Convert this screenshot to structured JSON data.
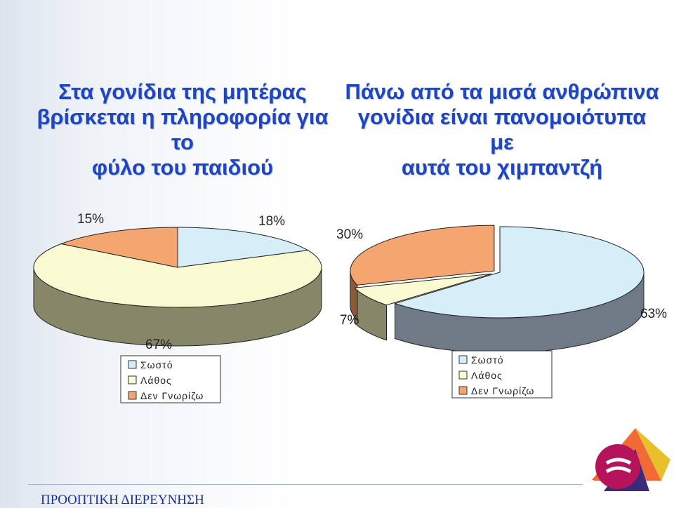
{
  "slide": {
    "title_left": [
      "Στα γονίδια της μητέρας",
      "βρίσκεται η πληροφορία για το",
      "φύλο του παιδιού"
    ],
    "title_right": [
      "Πάνω από τα μισά ανθρώπινα",
      "γονίδια είναι πανομοιότυπα με",
      "αυτά του χιμπαντζή"
    ],
    "footer": "ΠΡΟΟΠΤΙΚΗ ΔΙΕΡΕΥΝΗΣΗ",
    "logo_text": "ΠΡΟΟΠΤΙΚΗ ΔΙΕΡΕΥΝΗΣΗ"
  },
  "colors": {
    "correct": "#d6eef8",
    "wrong": "#fafad2",
    "dont_know": "#f5a56f",
    "title": "#1e45c2",
    "side_correct": "#6f7a86",
    "side_wrong": "#868668",
    "side_dont_know": "#8a5a3a"
  },
  "chart_data": [
    {
      "type": "pie",
      "categories": [
        "Σωστό",
        "Λάθος",
        "Δεν Γνωρίζω"
      ],
      "values": [
        18,
        67,
        15
      ],
      "labels": [
        "18%",
        "67%",
        "15%"
      ],
      "legend": [
        "Σωστό",
        "Λάθος",
        "Δεν Γνωρίζω"
      ],
      "legend_position": "bottom"
    },
    {
      "type": "pie",
      "categories": [
        "Σωστό",
        "Λάθος",
        "Δεν Γνωρίζω"
      ],
      "values": [
        63,
        7,
        30
      ],
      "labels": [
        "63%",
        "7%",
        "30%"
      ],
      "legend": [
        "Σωστό",
        "Λάθος",
        "Δεν Γνωρίζω"
      ],
      "legend_position": "bottom"
    }
  ]
}
